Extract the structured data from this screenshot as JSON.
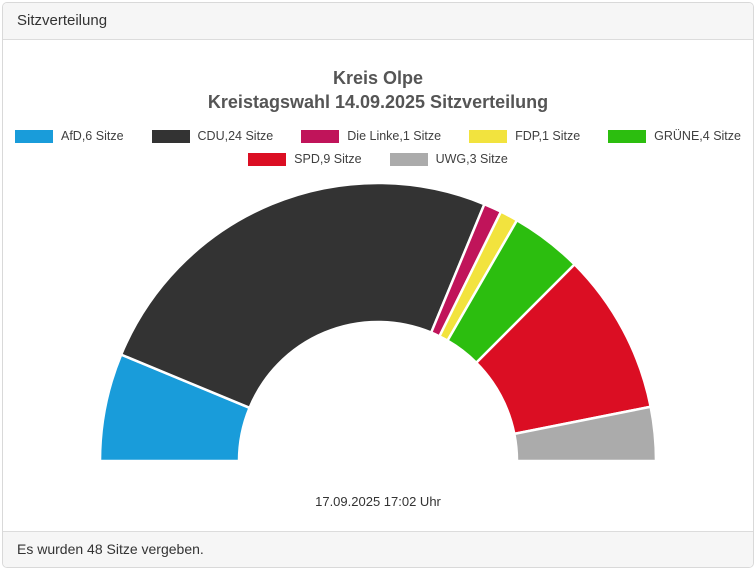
{
  "header": {
    "title": "Sitzverteilung"
  },
  "footer": {
    "text": "Es wurden 48 Sitze vergeben."
  },
  "chart_data": {
    "type": "pie",
    "variant": "half-donut",
    "title": "Kreis Olpe",
    "subtitle": "Kreistagswahl 14.09.2025 Sitzverteilung",
    "total_seats": 48,
    "categories": [
      "AfD",
      "CDU",
      "Die Linke",
      "FDP",
      "GRÜNE",
      "SPD",
      "UWG"
    ],
    "values": [
      6,
      24,
      1,
      1,
      4,
      9,
      3
    ],
    "colors": [
      "#199CDA",
      "#333333",
      "#C0145A",
      "#F2E33E",
      "#2CBE0F",
      "#DB0E23",
      "#ABABAB"
    ],
    "legend_labels": [
      "AfD,6 Sitze",
      "CDU,24 Sitze",
      "Die Linke,1 Sitze",
      "FDP,1 Sitze",
      "GRÜNE,4 Sitze",
      "SPD,9 Sitze",
      "UWG,3 Sitze"
    ],
    "legend_rows": [
      5,
      2
    ],
    "legend_position": "top",
    "start_angle_deg": 180,
    "end_angle_deg": 0,
    "segment_gap_color": "#ffffff",
    "timestamp": "17.09.2025 17:02 Uhr"
  }
}
